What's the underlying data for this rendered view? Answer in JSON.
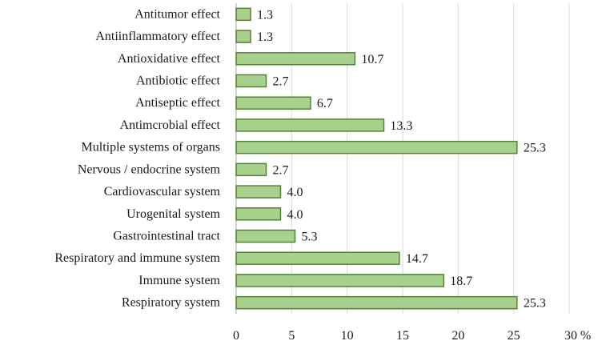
{
  "chart_data": {
    "type": "bar",
    "orientation": "horizontal",
    "categories": [
      "Antitumor effect",
      "Antiinflammatory effect",
      "Antioxidative effect",
      "Antibiotic effect",
      "Antiseptic effect",
      "Antimcrobial effect",
      "Multiple systems of organs",
      "Nervous / endocrine system",
      "Cardiovascular system",
      "Urogenital system",
      "Gastrointestinal tract",
      "Respiratory and immune system",
      "Immune system",
      "Respiratory system"
    ],
    "values": [
      1.3,
      1.3,
      10.7,
      2.7,
      6.7,
      13.3,
      25.3,
      2.7,
      4.0,
      4.0,
      5.3,
      14.7,
      18.7,
      25.3
    ],
    "value_labels": [
      "1.3",
      "1.3",
      "10.7",
      "2.7",
      "6.7",
      "13.3",
      "25.3",
      "2.7",
      "4.0",
      "4.0",
      "5.3",
      "14.7",
      "18.7",
      "25.3"
    ],
    "xlim": [
      0,
      30
    ],
    "x_ticks": [
      "0",
      "5",
      "10",
      "15",
      "20",
      "25",
      "30 %"
    ],
    "x_tick_values": [
      0,
      5,
      10,
      15,
      20,
      25,
      30
    ],
    "grid": true,
    "bar_fill": "#a9d18e",
    "bar_stroke": "#538135"
  }
}
